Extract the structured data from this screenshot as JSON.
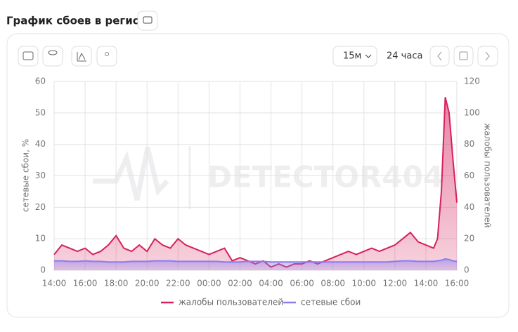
{
  "header": {
    "title": "График сбоев в регионе"
  },
  "toolbar": {
    "interval": "15м",
    "range": "24 часа"
  },
  "watermark": "DETECTOR404",
  "chart_data": {
    "type": "area",
    "y_label": "сетевые сбои, %",
    "y2_label": "жалобы пользователей",
    "x": [
      "14:00",
      "14:30",
      "15:00",
      "15:30",
      "16:00",
      "16:30",
      "17:00",
      "17:30",
      "18:00",
      "18:30",
      "19:00",
      "19:30",
      "20:00",
      "20:30",
      "21:00",
      "21:30",
      "22:00",
      "22:30",
      "23:00",
      "23:30",
      "00:00",
      "00:30",
      "01:00",
      "01:30",
      "02:00",
      "02:30",
      "03:00",
      "03:30",
      "04:00",
      "04:30",
      "05:00",
      "05:30",
      "06:00",
      "06:30",
      "07:00",
      "07:30",
      "08:00",
      "08:30",
      "09:00",
      "09:30",
      "10:00",
      "10:30",
      "11:00",
      "11:30",
      "12:00",
      "12:30",
      "13:00",
      "13:30",
      "14:00",
      "14:30",
      "14:45",
      "15:00",
      "15:15",
      "15:30",
      "15:45",
      "16:00"
    ],
    "xticks": [
      "14:00",
      "16:00",
      "18:00",
      "20:00",
      "22:00",
      "00:00",
      "02:00",
      "04:00",
      "06:00",
      "08:00",
      "10:00",
      "12:00",
      "14:00",
      "16:00"
    ],
    "ylim": [
      0,
      60
    ],
    "yticks": [
      0,
      10,
      20,
      30,
      40,
      50,
      60
    ],
    "y2lim": [
      0,
      120
    ],
    "y2ticks": [
      0,
      20,
      40,
      60,
      80,
      100,
      120
    ],
    "grid": true,
    "legend": "bottom",
    "series": [
      {
        "name": "жалобы пользователей",
        "color": "#d6215b",
        "axis": "y2",
        "values": [
          10,
          16,
          14,
          12,
          14,
          10,
          12,
          16,
          22,
          14,
          12,
          16,
          12,
          20,
          16,
          14,
          20,
          16,
          14,
          12,
          10,
          12,
          14,
          6,
          8,
          6,
          4,
          6,
          2,
          4,
          2,
          4,
          4,
          6,
          4,
          6,
          8,
          10,
          12,
          10,
          12,
          14,
          12,
          14,
          16,
          20,
          24,
          18,
          16,
          14,
          20,
          50,
          110,
          100,
          70,
          43
        ]
      },
      {
        "name": "сетевые сбои",
        "color": "#8b7cf0",
        "values": [
          3,
          3,
          2.8,
          2.8,
          3,
          2.8,
          2.8,
          2.6,
          2.6,
          2.6,
          2.8,
          2.8,
          2.8,
          3,
          3,
          3,
          2.8,
          2.8,
          2.8,
          2.8,
          2.8,
          2.8,
          2.6,
          2.6,
          2.6,
          2.8,
          2.8,
          2.8,
          2.6,
          2.6,
          2.6,
          2.6,
          2.6,
          2.6,
          2.6,
          2.6,
          2.6,
          2.6,
          2.6,
          2.6,
          2.6,
          2.6,
          2.6,
          2.6,
          2.8,
          3,
          3,
          2.8,
          2.8,
          2.8,
          3,
          3.2,
          3.6,
          3.4,
          3,
          2.8
        ]
      }
    ]
  }
}
